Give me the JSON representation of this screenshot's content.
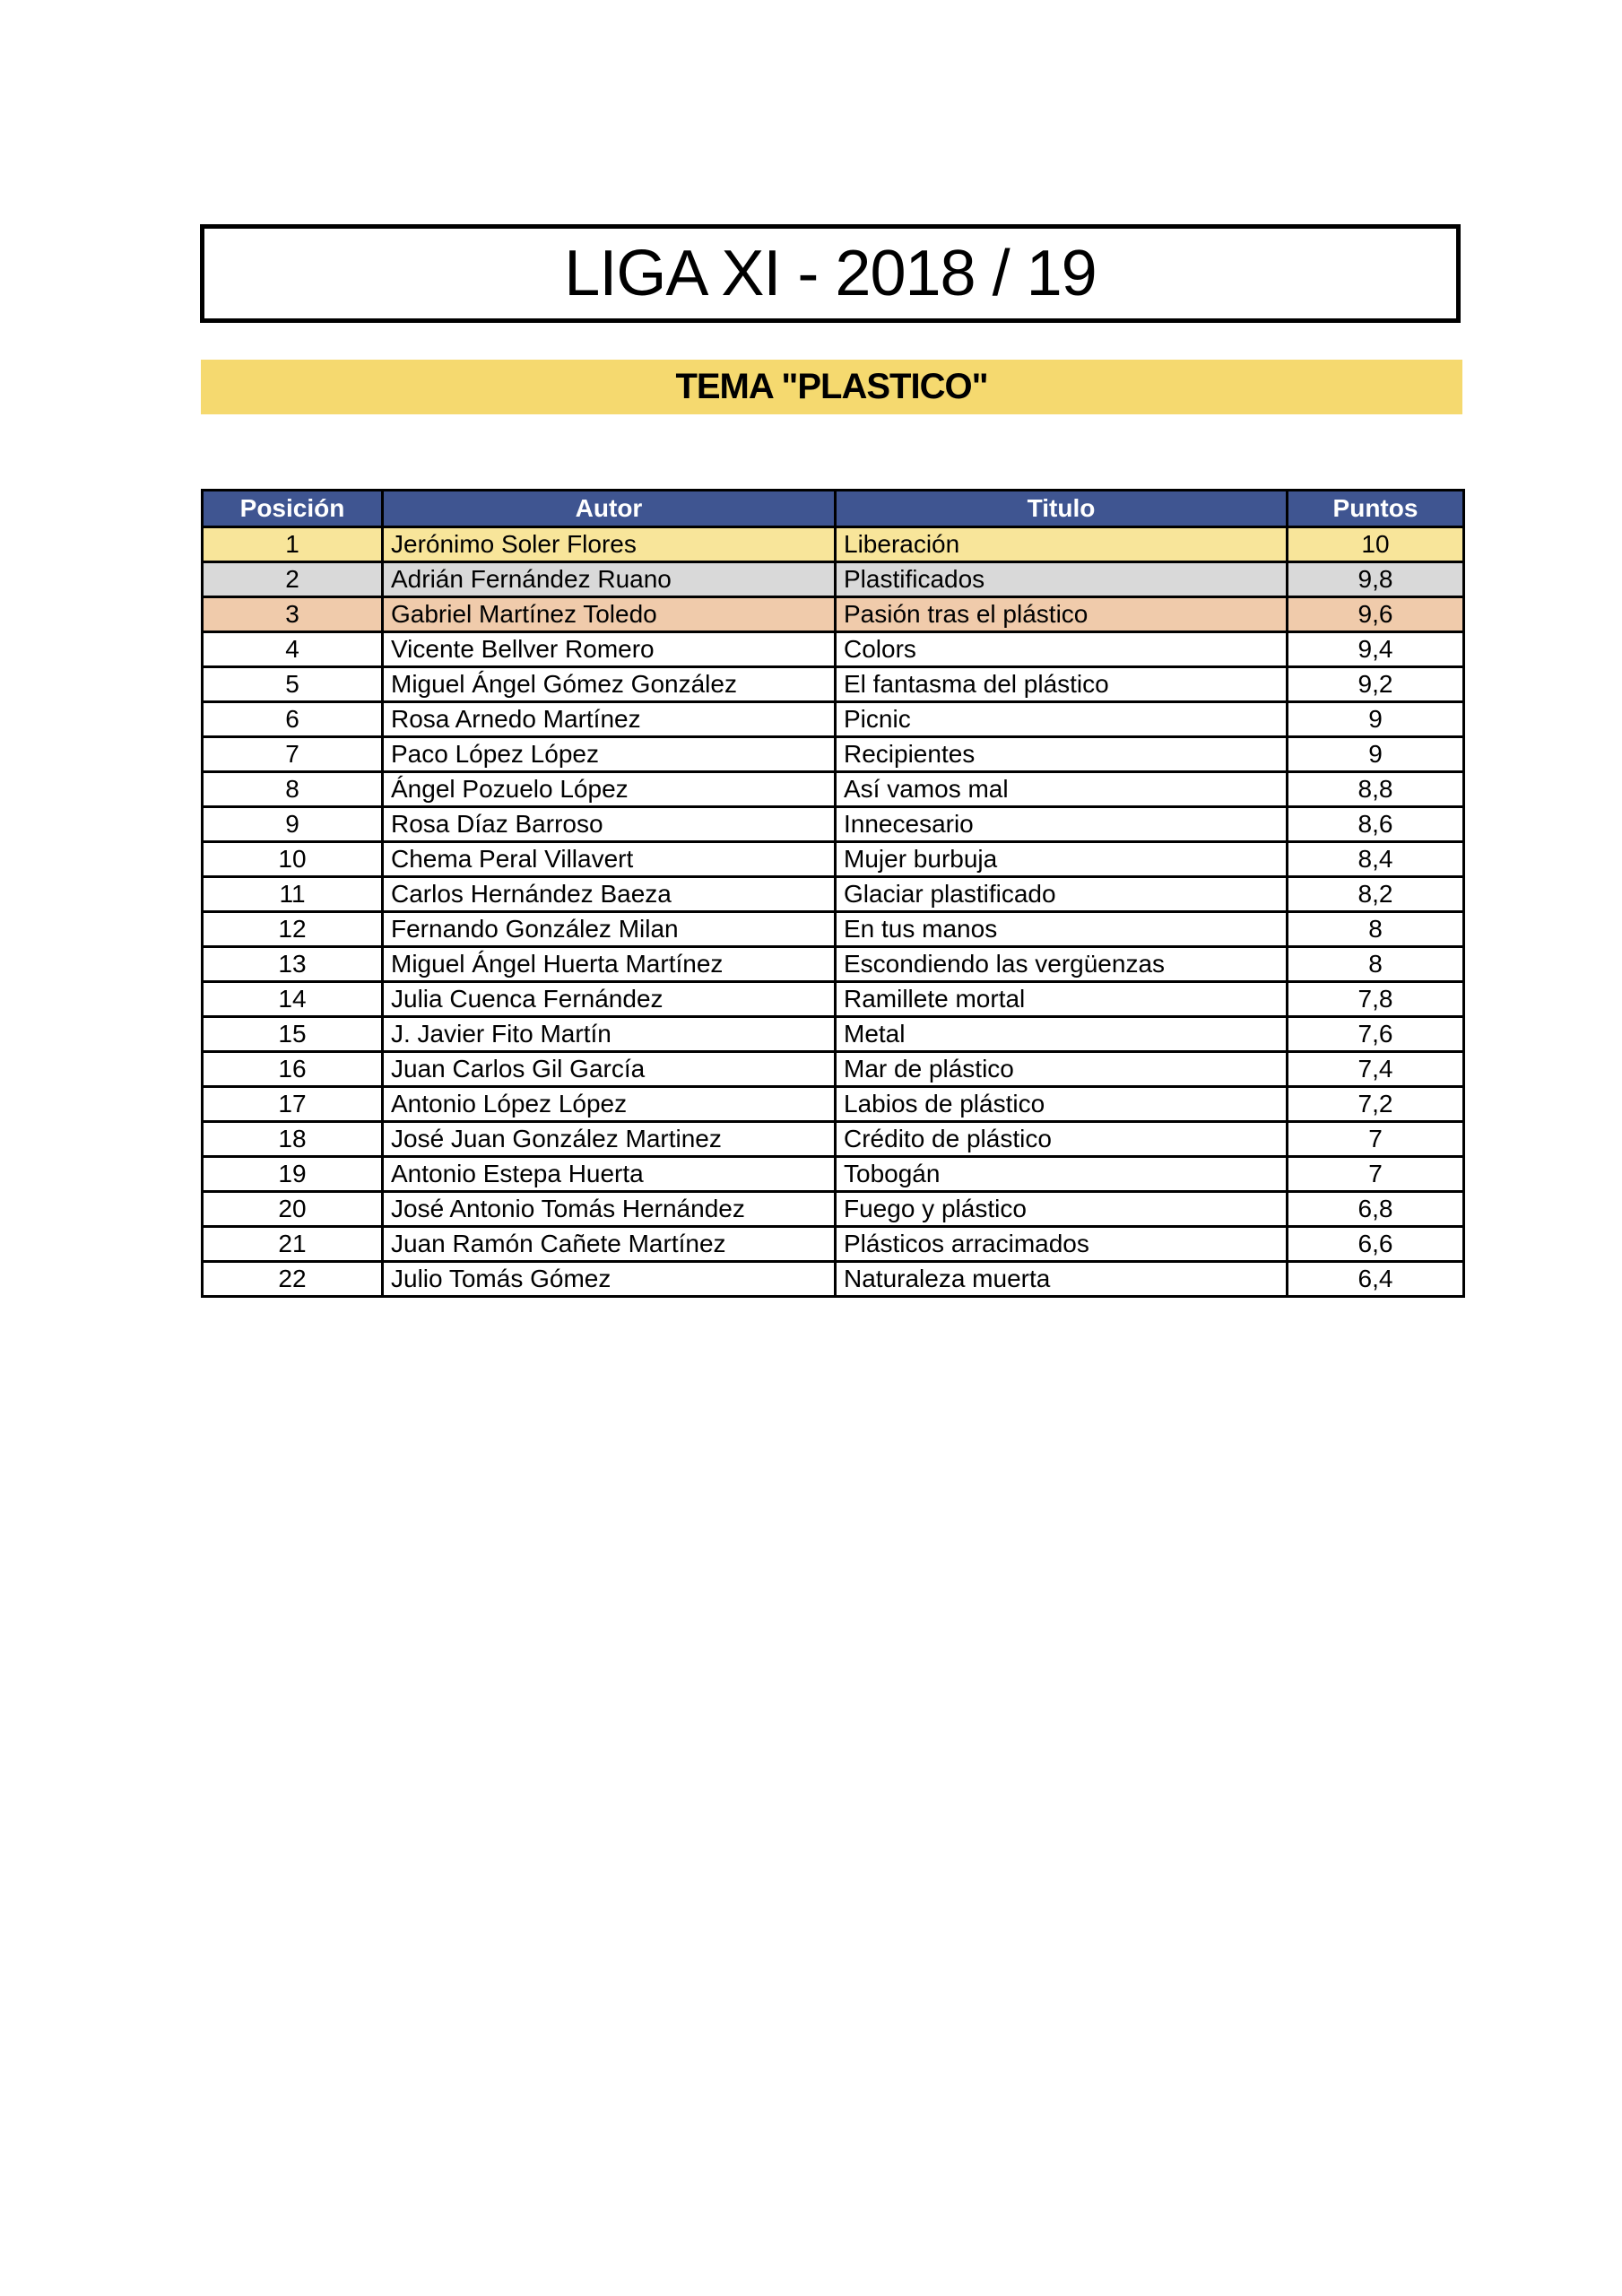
{
  "title": "LIGA  XI - 2018 / 19",
  "theme": "TEMA \"PLASTICO\"",
  "colors": {
    "header": "#3f5591",
    "theme_band": "#f5d96f",
    "first": "#f8e59a",
    "second": "#d9d9d9",
    "third": "#f0cbab"
  },
  "table": {
    "headers": [
      "Posición",
      "Autor",
      "Titulo",
      "Puntos"
    ],
    "rows": [
      [
        "1",
        "Jerónimo Soler Flores",
        "Liberación",
        "10"
      ],
      [
        "2",
        "Adrián Fernández Ruano",
        "Plastificados",
        "9,8"
      ],
      [
        "3",
        "Gabriel Martínez Toledo",
        "Pasión tras el plástico",
        "9,6"
      ],
      [
        "4",
        "Vicente Bellver Romero",
        "Colors",
        "9,4"
      ],
      [
        "5",
        "Miguel Ángel Gómez González",
        "El fantasma del plástico",
        "9,2"
      ],
      [
        "6",
        "Rosa Arnedo Martínez",
        "Picnic",
        "9"
      ],
      [
        "7",
        "Paco López López",
        "Recipientes",
        "9"
      ],
      [
        "8",
        "Ángel Pozuelo López",
        "Así vamos mal",
        "8,8"
      ],
      [
        "9",
        "Rosa Díaz Barroso",
        "Innecesario",
        "8,6"
      ],
      [
        "10",
        "Chema Peral Villavert",
        "Mujer burbuja",
        "8,4"
      ],
      [
        "11",
        "Carlos Hernández Baeza",
        "Glaciar plastificado",
        "8,2"
      ],
      [
        "12",
        "Fernando González Milan",
        "En tus manos",
        "8"
      ],
      [
        "13",
        "Miguel Ángel Huerta Martínez",
        "Escondiendo las vergüenzas",
        "8"
      ],
      [
        "14",
        "Julia Cuenca Fernández",
        "Ramillete mortal",
        "7,8"
      ],
      [
        "15",
        "J. Javier Fito Martín",
        "Metal",
        "7,6"
      ],
      [
        "16",
        "Juan Carlos Gil García",
        "Mar de plástico",
        "7,4"
      ],
      [
        "17",
        "Antonio López López",
        "Labios de plástico",
        "7,2"
      ],
      [
        "18",
        "José Juan González Martinez",
        "Crédito de plástico",
        "7"
      ],
      [
        "19",
        "Antonio Estepa Huerta",
        "Tobogán",
        "7"
      ],
      [
        "20",
        "José Antonio Tomás Hernández",
        "Fuego y plástico",
        "6,8"
      ],
      [
        "21",
        "Juan Ramón Cañete Martínez",
        "Plásticos arracimados",
        "6,6"
      ],
      [
        "22",
        "Julio Tomás Gómez",
        "Naturaleza muerta",
        "6,4"
      ]
    ]
  }
}
